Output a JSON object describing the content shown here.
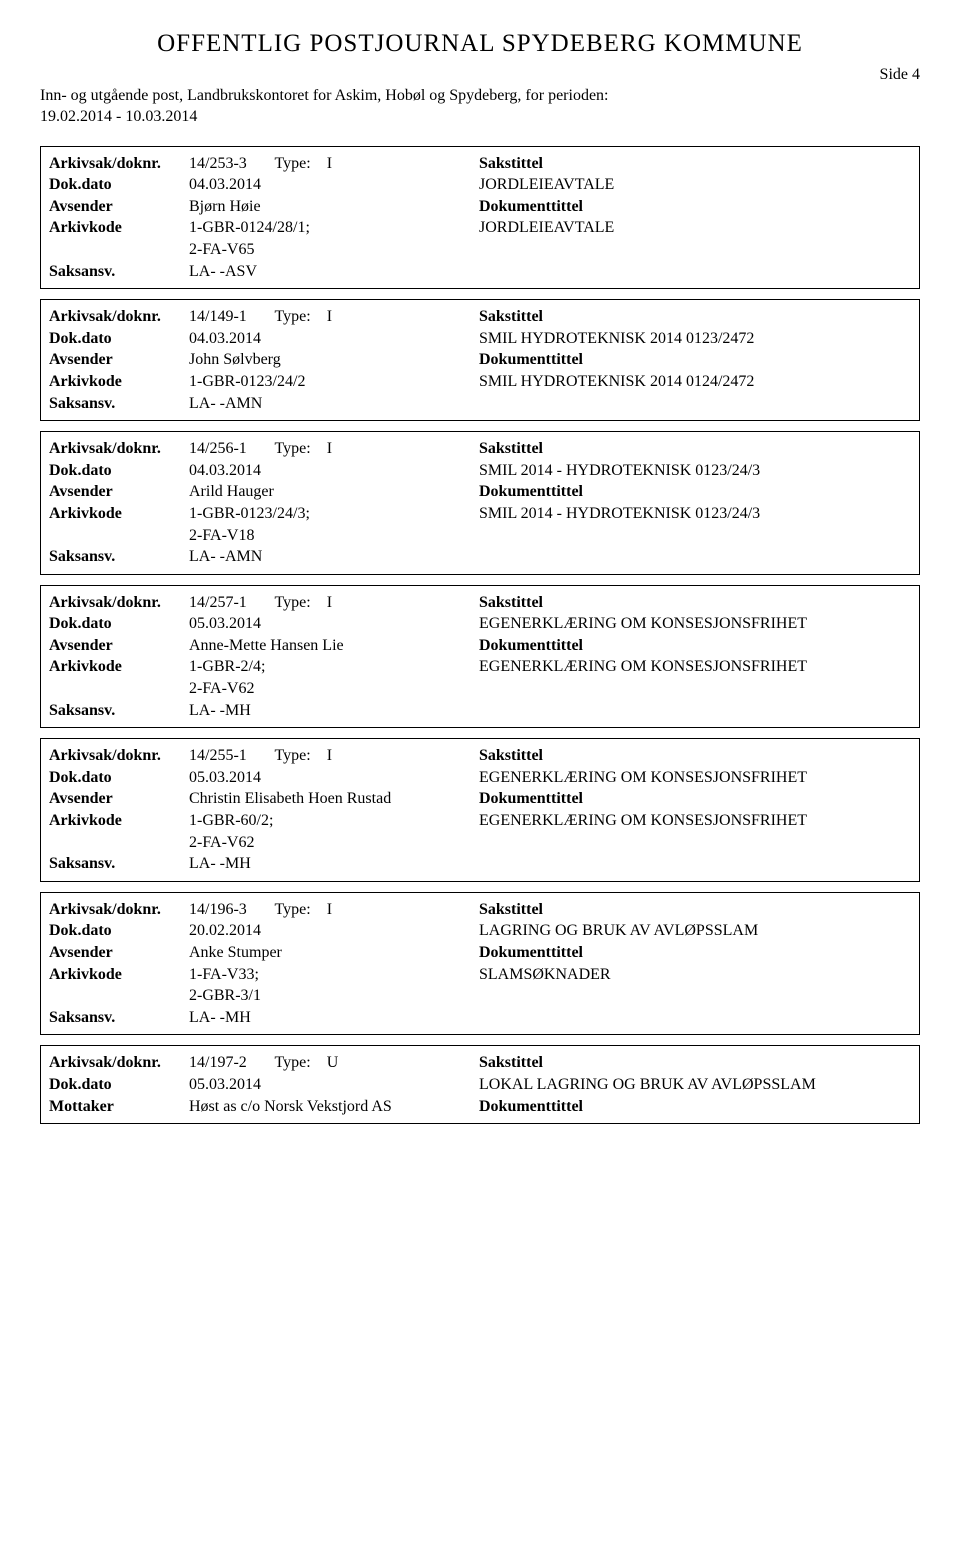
{
  "header": {
    "title": "OFFENTLIG POSTJOURNAL SPYDEBERG KOMMUNE",
    "side": "Side 4",
    "subtitle_line1": "Inn- og utgående post, Landbrukskontoret for Askim, Hobøl og Spydeberg, for perioden:",
    "subtitle_line2": "19.02.2014 - 10.03.2014"
  },
  "labels": {
    "arkivsak": "Arkivsak/doknr.",
    "dokdato": "Dok.dato",
    "avsender": "Avsender",
    "mottaker": "Mottaker",
    "arkivkode": "Arkivkode",
    "saksansv": "Saksansv.",
    "type": "Type:",
    "sakstittel": "Sakstittel",
    "dokumenttittel": "Dokumenttittel"
  },
  "entries": [
    {
      "arkivsak": "14/253-3",
      "type": "I",
      "dokdato": "04.03.2014",
      "party_label": "Avsender",
      "party": "Bjørn Høie",
      "arkivkode": "1-GBR-0124/28/1;\n2-FA-V65",
      "saksansv": "LA- -ASV",
      "sakstittel_text": "JORDLEIEAVTALE",
      "dokumenttittel_text": "JORDLEIEAVTALE"
    },
    {
      "arkivsak": "14/149-1",
      "type": "I",
      "dokdato": "04.03.2014",
      "party_label": "Avsender",
      "party": "John Sølvberg",
      "arkivkode": "1-GBR-0123/24/2",
      "saksansv": "LA- -AMN",
      "sakstittel_text": "SMIL HYDROTEKNISK 2014 0123/2472",
      "dokumenttittel_text": "SMIL HYDROTEKNISK 2014 0124/2472"
    },
    {
      "arkivsak": "14/256-1",
      "type": "I",
      "dokdato": "04.03.2014",
      "party_label": "Avsender",
      "party": "Arild Hauger",
      "arkivkode": "1-GBR-0123/24/3;\n2-FA-V18",
      "saksansv": "LA- -AMN",
      "sakstittel_text": "SMIL 2014 - HYDROTEKNISK 0123/24/3",
      "dokumenttittel_text": "SMIL 2014 - HYDROTEKNISK 0123/24/3"
    },
    {
      "arkivsak": "14/257-1",
      "type": "I",
      "dokdato": "05.03.2014",
      "party_label": "Avsender",
      "party": "Anne-Mette Hansen Lie",
      "arkivkode": "1-GBR-2/4;\n2-FA-V62",
      "saksansv": "LA- -MH",
      "sakstittel_text": "EGENERKLÆRING OM KONSESJONSFRIHET",
      "dokumenttittel_text": "EGENERKLÆRING OM KONSESJONSFRIHET"
    },
    {
      "arkivsak": "14/255-1",
      "type": "I",
      "dokdato": "05.03.2014",
      "party_label": "Avsender",
      "party": "Christin Elisabeth Hoen Rustad",
      "arkivkode": "1-GBR-60/2;\n2-FA-V62",
      "saksansv": "LA- -MH",
      "sakstittel_text": "EGENERKLÆRING OM KONSESJONSFRIHET",
      "dokumenttittel_text": "EGENERKLÆRING OM KONSESJONSFRIHET"
    },
    {
      "arkivsak": "14/196-3",
      "type": "I",
      "dokdato": "20.02.2014",
      "party_label": "Avsender",
      "party": "Anke Stumper",
      "arkivkode": "1-FA-V33;\n2-GBR-3/1",
      "saksansv": "LA- -MH",
      "sakstittel_text": "LAGRING OG BRUK AV AVLØPSSLAM",
      "dokumenttittel_text": "SLAMSØKNADER"
    },
    {
      "arkivsak": "14/197-2",
      "type": "U",
      "dokdato": "05.03.2014",
      "party_label": "Mottaker",
      "party": "Høst as c/o Norsk Vekstjord AS",
      "arkivkode": "",
      "saksansv": "",
      "sakstittel_text": "LOKAL LAGRING OG BRUK AV AVLØPSSLAM",
      "dokumenttittel_text": "",
      "partial": true
    }
  ]
}
